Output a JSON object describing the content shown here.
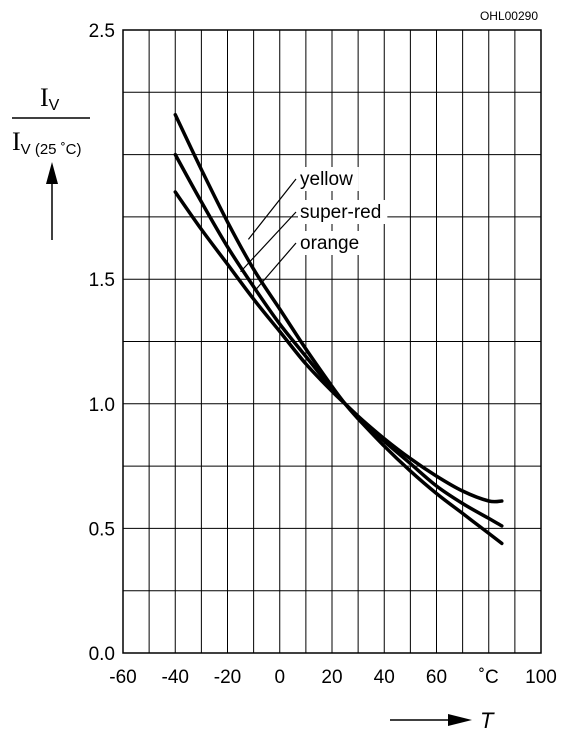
{
  "chart_data": {
    "type": "line",
    "figure_code": "OHL00290",
    "ylabel": {
      "numerator": "I",
      "numerator_sub": "V",
      "denominator": "I",
      "denominator_sub": "V (25 ˚C)"
    },
    "xlabel": "T",
    "x_unit_label": "˚C",
    "xlim": [
      -60,
      100
    ],
    "ylim": [
      0.0,
      2.5
    ],
    "x_grid_step": 10,
    "y_grid_step": 0.25,
    "x_ticks": [
      {
        "value": -60,
        "label": "-60"
      },
      {
        "value": -40,
        "label": "-40"
      },
      {
        "value": -20,
        "label": "-20"
      },
      {
        "value": 0,
        "label": "0"
      },
      {
        "value": 20,
        "label": "20"
      },
      {
        "value": 40,
        "label": "40"
      },
      {
        "value": 60,
        "label": "60"
      },
      {
        "value": 80,
        "label": "˚C"
      },
      {
        "value": 100,
        "label": "100"
      }
    ],
    "y_ticks": [
      {
        "value": 0.0,
        "label": "0.0"
      },
      {
        "value": 0.5,
        "label": "0.5"
      },
      {
        "value": 1.0,
        "label": "1.0"
      },
      {
        "value": 1.5,
        "label": "1.5"
      },
      {
        "value": 2.5,
        "label": "2.5"
      }
    ],
    "grid": true,
    "series": [
      {
        "name": "yellow",
        "x": [
          -40,
          -30,
          -20,
          -10,
          0,
          10,
          20,
          25,
          30,
          40,
          50,
          60,
          70,
          80,
          85
        ],
        "y": [
          2.16,
          1.94,
          1.73,
          1.54,
          1.38,
          1.22,
          1.07,
          1.0,
          0.94,
          0.83,
          0.73,
          0.64,
          0.56,
          0.48,
          0.44
        ]
      },
      {
        "name": "super-red",
        "x": [
          -40,
          -30,
          -20,
          -10,
          0,
          10,
          20,
          25,
          30,
          40,
          50,
          60,
          70,
          80,
          85
        ],
        "y": [
          2.0,
          1.81,
          1.63,
          1.47,
          1.32,
          1.19,
          1.06,
          1.0,
          0.95,
          0.85,
          0.76,
          0.67,
          0.6,
          0.54,
          0.51
        ]
      },
      {
        "name": "orange",
        "x": [
          -40,
          -30,
          -20,
          -10,
          0,
          10,
          20,
          25,
          30,
          40,
          50,
          60,
          70,
          80,
          85
        ],
        "y": [
          1.85,
          1.7,
          1.56,
          1.42,
          1.29,
          1.16,
          1.05,
          1.0,
          0.95,
          0.86,
          0.78,
          0.71,
          0.65,
          0.61,
          0.61
        ]
      }
    ],
    "legend": {
      "placement": "center",
      "entries": [
        {
          "name": "yellow",
          "pointer_x": -12,
          "pointer_y": 1.66
        },
        {
          "name": "super-red",
          "pointer_x": -15,
          "pointer_y": 1.53
        },
        {
          "name": "orange",
          "pointer_x": -9,
          "pointer_y": 1.46
        }
      ]
    }
  }
}
